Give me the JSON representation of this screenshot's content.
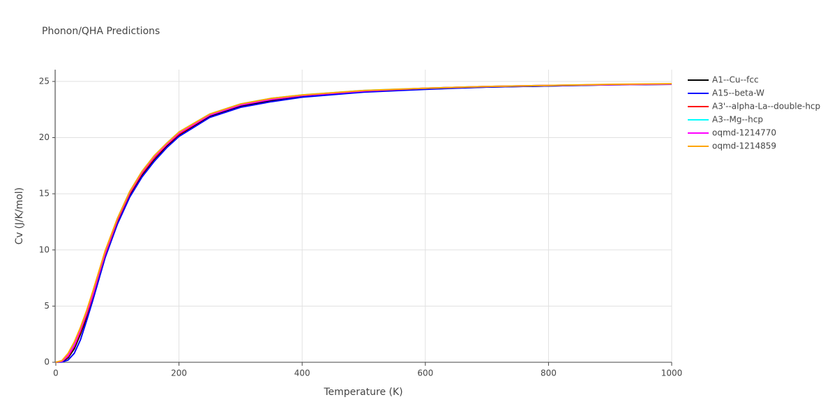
{
  "chart_data": {
    "type": "line",
    "title": "Phonon/QHA Predictions",
    "x_label": "Temperature (K)",
    "y_label": "Cv (J/K/mol)",
    "x": [
      0,
      10,
      20,
      30,
      40,
      50,
      60,
      70,
      80,
      100,
      120,
      140,
      160,
      180,
      200,
      250,
      300,
      350,
      400,
      500,
      600,
      700,
      800,
      900,
      1000
    ],
    "series": [
      {
        "name": "A1--Cu--fcc",
        "color": "#000000",
        "values": [
          0,
          0.05,
          0.4,
          1.2,
          2.5,
          4.0,
          5.7,
          7.6,
          9.4,
          12.4,
          14.8,
          16.6,
          18.0,
          19.2,
          20.2,
          21.9,
          22.8,
          23.3,
          23.7,
          24.1,
          24.35,
          24.5,
          24.6,
          24.7,
          24.75
        ]
      },
      {
        "name": "A15--beta-W",
        "color": "#0000ff",
        "values": [
          0,
          0.02,
          0.2,
          0.8,
          2.0,
          3.7,
          5.5,
          7.4,
          9.3,
          12.3,
          14.7,
          16.5,
          17.9,
          19.1,
          20.1,
          21.8,
          22.7,
          23.2,
          23.6,
          24.05,
          24.3,
          24.5,
          24.6,
          24.7,
          24.75
        ]
      },
      {
        "name": "A3'--alpha-La--double-hcp",
        "color": "#ff0000",
        "values": [
          0,
          0.08,
          0.5,
          1.4,
          2.7,
          4.2,
          5.9,
          7.8,
          9.6,
          12.6,
          15.0,
          16.8,
          18.2,
          19.35,
          20.3,
          22.0,
          22.9,
          23.4,
          23.75,
          24.15,
          24.4,
          24.55,
          24.65,
          24.72,
          24.77
        ]
      },
      {
        "name": "A3--Mg--hcp",
        "color": "#00ffff",
        "values": [
          0,
          0.1,
          0.6,
          1.6,
          2.9,
          4.4,
          6.1,
          8.0,
          9.8,
          12.8,
          15.2,
          17.0,
          18.4,
          19.5,
          20.5,
          22.1,
          23.0,
          23.5,
          23.8,
          24.2,
          24.4,
          24.55,
          24.65,
          24.72,
          24.77
        ]
      },
      {
        "name": "oqmd-1214770",
        "color": "#ff00ff",
        "values": [
          0,
          0.1,
          0.6,
          1.5,
          2.9,
          4.4,
          6.0,
          7.9,
          9.7,
          12.7,
          15.1,
          16.9,
          18.3,
          19.4,
          20.4,
          22.0,
          22.9,
          23.4,
          23.75,
          24.15,
          24.4,
          24.55,
          24.65,
          24.72,
          24.77
        ]
      },
      {
        "name": "oqmd-1214859",
        "color": "#ffa500",
        "values": [
          0,
          0.15,
          0.8,
          1.8,
          3.1,
          4.6,
          6.3,
          8.1,
          9.9,
          12.8,
          15.2,
          17.0,
          18.4,
          19.5,
          20.5,
          22.1,
          23.0,
          23.5,
          23.8,
          24.2,
          24.4,
          24.55,
          24.65,
          24.75,
          24.8
        ]
      }
    ],
    "xlim": [
      0,
      1000
    ],
    "ylim": [
      0,
      26.05
    ],
    "xticks": [
      0,
      200,
      400,
      600,
      800,
      1000
    ],
    "yticks": [
      0,
      5,
      10,
      15,
      20,
      25
    ],
    "grid": true
  }
}
